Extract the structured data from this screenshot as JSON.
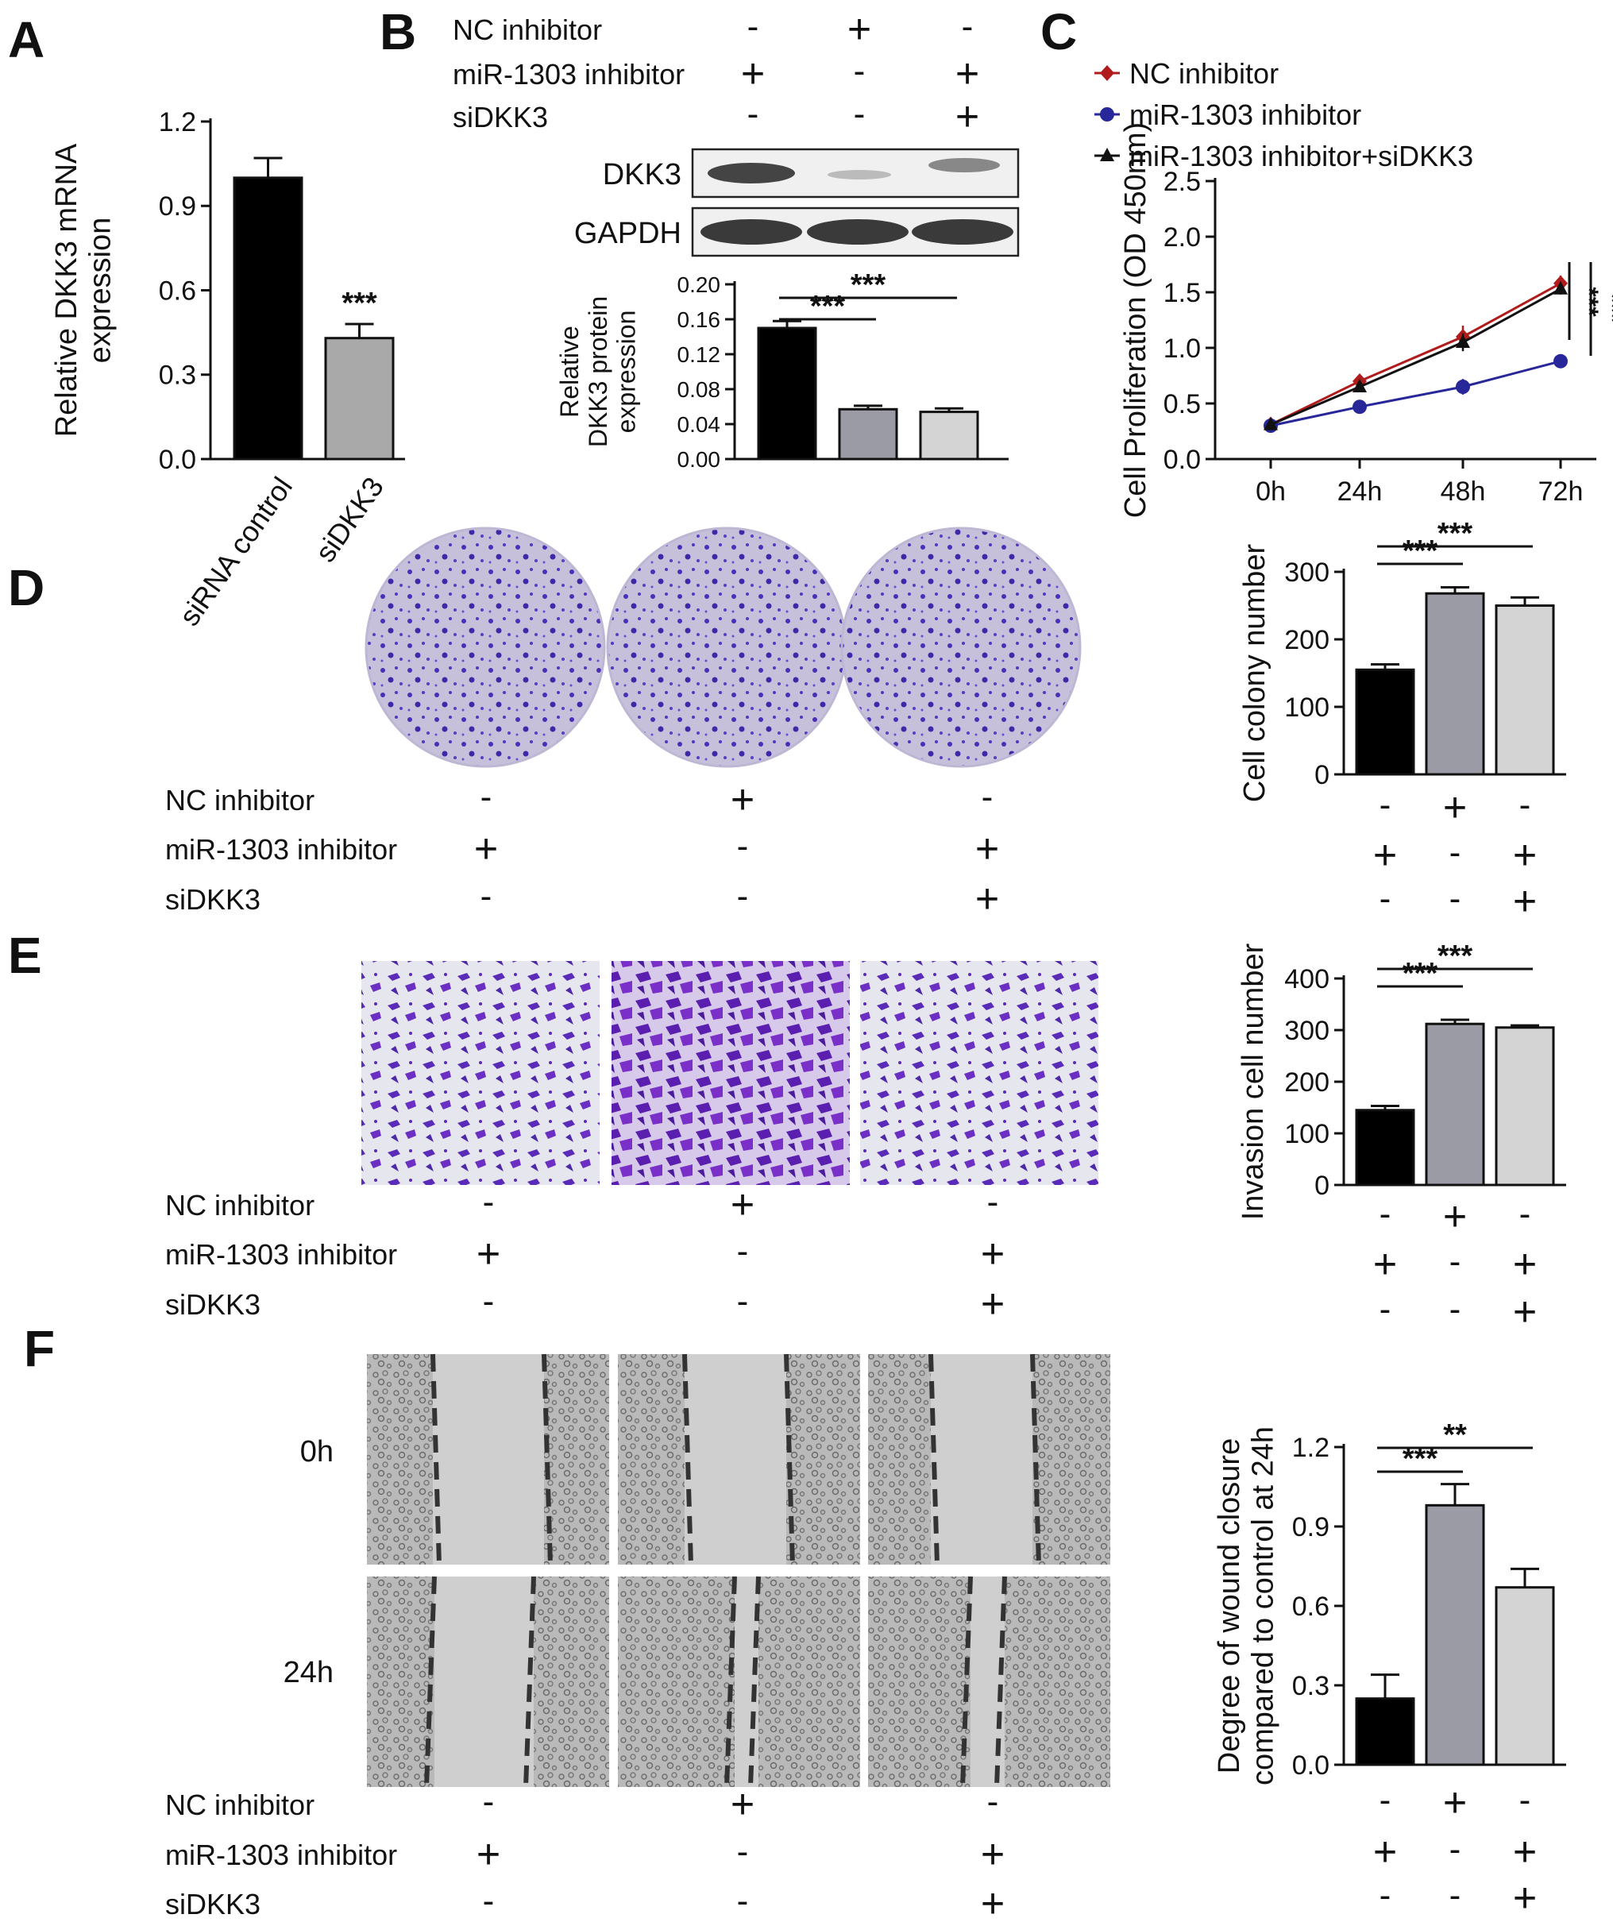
{
  "colors": {
    "black": "#000000",
    "dark_gray": "#9b9ba6",
    "light_gray": "#d4d4d4",
    "gray": "#a9a9a9",
    "red": "#b01c1c",
    "blue": "#27279a",
    "crystal": "#5b34c9",
    "crystal_bg": "#c9c3dc",
    "wound_bg": "#c8c8c8"
  },
  "panels": {
    "A": "A",
    "B": "B",
    "C": "C",
    "D": "D",
    "E": "E",
    "F": "F"
  },
  "condition_labels": {
    "nc": "NC inhibitor",
    "mir": "miR-1303 inhibitor",
    "si": "siDKK3",
    "plus": "+",
    "minus": "-"
  },
  "conditions": [
    [
      "-",
      "+",
      "-"
    ],
    [
      "+",
      "-",
      "+"
    ],
    [
      "-",
      "-",
      "+"
    ]
  ],
  "blot": {
    "bands": [
      "DKK3",
      "GAPDH"
    ]
  },
  "images": {
    "time_labels": [
      "0h",
      "24h"
    ]
  },
  "chart_data": [
    {
      "id": "A",
      "type": "bar",
      "categories": [
        "siRNA control",
        "siDKK3"
      ],
      "values": [
        1.0,
        0.43
      ],
      "errors": [
        0.07,
        0.05
      ],
      "ylabel": "Relative DKK3 mRNA expression",
      "ylabel_lines": [
        "Relative DKK3 mRNA",
        "expression"
      ],
      "ylim": [
        0,
        1.2
      ],
      "yticks": [
        "0.0",
        "0.3",
        "0.6",
        "0.9",
        "1.2"
      ],
      "annotations": [
        "",
        "***"
      ],
      "colors": [
        "#000000",
        "#a9a9a9"
      ]
    },
    {
      "id": "B",
      "type": "bar",
      "categories": [
        "1",
        "2",
        "3"
      ],
      "values": [
        0.15,
        0.057,
        0.054
      ],
      "errors": [
        0.008,
        0.004,
        0.004
      ],
      "ylabel": "Relative DKK3 protein expression",
      "ylabel_lines": [
        "Relative",
        "DKK3 protein",
        "expression"
      ],
      "ylim": [
        0,
        0.2
      ],
      "yticks": [
        "0.00",
        "0.04",
        "0.08",
        "0.12",
        "0.16",
        "0.20"
      ],
      "significance": [
        {
          "from": 0,
          "to": 1,
          "label": "***"
        },
        {
          "from": 0,
          "to": 2,
          "label": "***"
        }
      ]
    },
    {
      "id": "C",
      "type": "line",
      "x": [
        "0h",
        "24h",
        "48h",
        "72h"
      ],
      "ylabel": "Cell Proliferation (OD 450nm)",
      "ylim": [
        0,
        2.5
      ],
      "yticks": [
        "0.0",
        "0.5",
        "1.0",
        "1.5",
        "2.0",
        "2.5"
      ],
      "series": [
        {
          "name": "NC inhibitor",
          "values": [
            0.31,
            0.7,
            1.1,
            1.58
          ],
          "errors": [
            0.02,
            0.06,
            0.1,
            0.07
          ]
        },
        {
          "name": "miR-1303 inhibitor",
          "values": [
            0.3,
            0.47,
            0.65,
            0.88
          ],
          "errors": [
            0.02,
            0.06,
            0.07,
            0.06
          ]
        },
        {
          "name": "miR-1303 inhibitor+siDKK3",
          "values": [
            0.31,
            0.65,
            1.05,
            1.53
          ],
          "errors": [
            0.02,
            0.05,
            0.08,
            0.05
          ]
        }
      ],
      "significance": [
        "***",
        "***"
      ],
      "legend_position": "top-left"
    },
    {
      "id": "D",
      "type": "bar",
      "categories": [
        "1",
        "2",
        "3"
      ],
      "values": [
        155,
        268,
        250
      ],
      "errors": [
        8,
        9,
        12
      ],
      "ylabel": "Cell colony number",
      "ylim": [
        0,
        300
      ],
      "yticks": [
        "0",
        "100",
        "200",
        "300"
      ],
      "significance": [
        {
          "from": 0,
          "to": 1,
          "label": "***"
        },
        {
          "from": 0,
          "to": 2,
          "label": "***"
        }
      ]
    },
    {
      "id": "E",
      "type": "bar",
      "categories": [
        "1",
        "2",
        "3"
      ],
      "values": [
        145,
        312,
        305
      ],
      "errors": [
        8,
        8,
        4
      ],
      "ylabel": "Invasion cell number",
      "ylim": [
        0,
        400
      ],
      "yticks": [
        "0",
        "100",
        "200",
        "300",
        "400"
      ],
      "significance": [
        {
          "from": 0,
          "to": 1,
          "label": "***"
        },
        {
          "from": 0,
          "to": 2,
          "label": "**​*"
        }
      ]
    },
    {
      "id": "F",
      "type": "bar",
      "categories": [
        "1",
        "2",
        "3"
      ],
      "values": [
        0.25,
        0.98,
        0.67
      ],
      "errors": [
        0.09,
        0.08,
        0.07
      ],
      "ylabel": "Degree of wound closure compared to control at 24h",
      "ylabel_lines": [
        "Degree of wound closure",
        "compared to control at 24h"
      ],
      "ylim": [
        0,
        1.2
      ],
      "yticks": [
        "0.0",
        "0.3",
        "0.6",
        "0.9",
        "1.2"
      ],
      "significance": [
        {
          "from": 0,
          "to": 1,
          "label": "***"
        },
        {
          "from": 0,
          "to": 2,
          "label": "**"
        }
      ]
    }
  ]
}
